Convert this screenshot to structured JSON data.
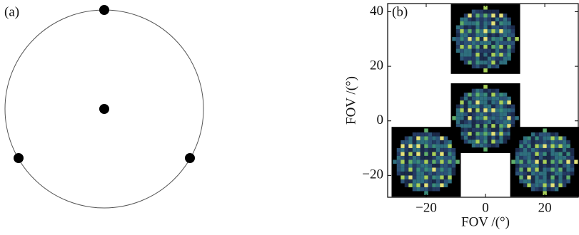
{
  "panels": {
    "a": {
      "label": "(a)"
    },
    "b": {
      "label": "(b)",
      "x_label": "FOV /(°)",
      "y_label": "FOV /(°)",
      "xlim": [
        -33,
        31.3
      ],
      "ylim": [
        -28,
        43
      ],
      "xticks": [
        {
          "value": -20,
          "label": "−20"
        },
        0,
        20
      ],
      "yticks": [
        {
          "value": -20,
          "label": "−20"
        },
        0,
        20,
        40
      ],
      "tiles": [
        {
          "x": 0,
          "y": 30
        },
        {
          "x": 0,
          "y": 1
        },
        {
          "x": -20,
          "y": -15
        },
        {
          "x": 20,
          "y": -15
        }
      ]
    }
  }
}
